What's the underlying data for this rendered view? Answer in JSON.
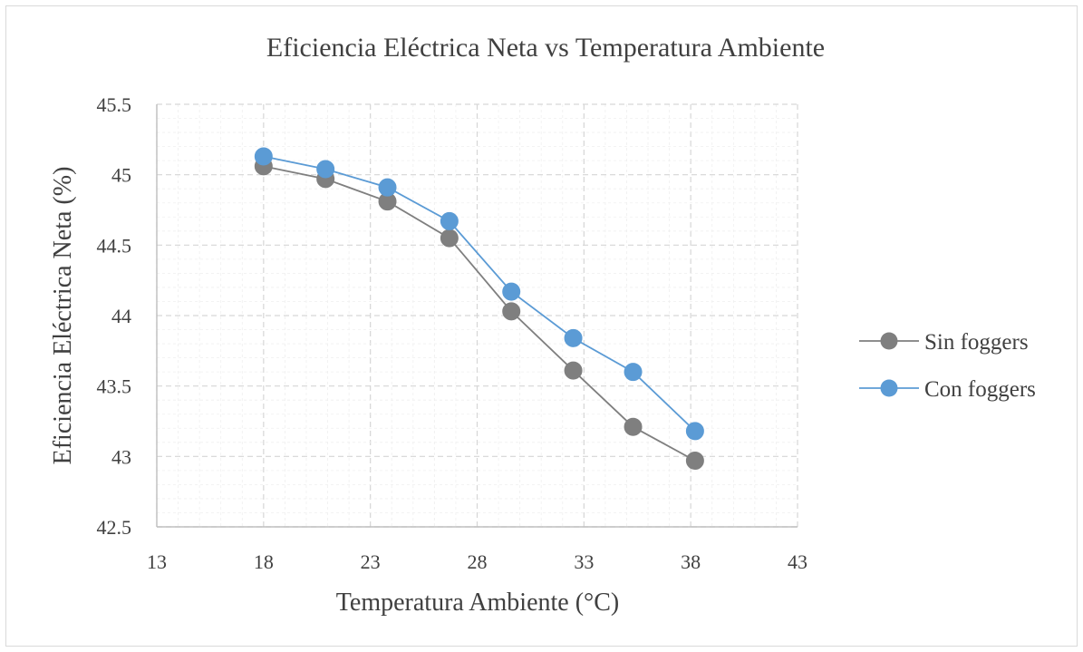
{
  "chart_data": {
    "type": "scatter",
    "title": "Eficiencia Eléctrica Neta vs Temperatura Ambiente",
    "xlabel": "Temperatura Ambiente (°C)",
    "ylabel": "Eficiencia Eléctrica Neta (%)",
    "xlim": [
      13,
      43
    ],
    "ylim": [
      42.5,
      45.5
    ],
    "xticks": [
      13,
      18,
      23,
      28,
      33,
      38,
      43
    ],
    "xtick_labels": [
      "13",
      "18",
      "23",
      "28",
      "33",
      "38",
      "43"
    ],
    "yticks": [
      42.5,
      43,
      43.5,
      44,
      44.5,
      45,
      45.5
    ],
    "ytick_labels": [
      "42.5",
      "43",
      "43.5",
      "44",
      "44.5",
      "45",
      "45.5"
    ],
    "grid": true,
    "legend_position": "right",
    "series": [
      {
        "name": "Sin foggers",
        "color": "#7f7f7f",
        "x": [
          18,
          20.9,
          23.8,
          26.7,
          29.6,
          32.5,
          35.3,
          38.2
        ],
        "y": [
          45.06,
          44.97,
          44.81,
          44.55,
          44.03,
          43.61,
          43.21,
          42.97
        ]
      },
      {
        "name": "Con foggers",
        "color": "#5b9bd5",
        "x": [
          18,
          20.9,
          23.8,
          26.7,
          29.6,
          32.5,
          35.3,
          38.2
        ],
        "y": [
          45.13,
          45.04,
          44.91,
          44.67,
          44.17,
          43.84,
          43.6,
          43.18
        ]
      }
    ]
  }
}
